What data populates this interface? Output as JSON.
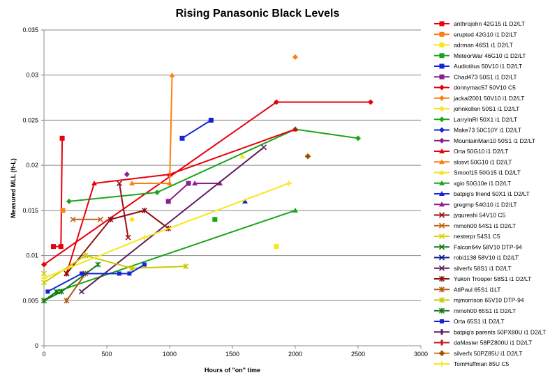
{
  "chart_data": {
    "type": "line",
    "title": "Rising Panasonic Black Levels",
    "xlabel": "Hours of \"on\" time",
    "ylabel": "Measured MLL (ft-L)",
    "xlim": [
      0,
      3000
    ],
    "ylim": [
      0,
      0.035
    ],
    "xticks": [
      "0",
      "500",
      "1000",
      "1500",
      "2000",
      "2500",
      "3000"
    ],
    "yticks": [
      "0",
      "0.005",
      "0.01",
      "0.015",
      "0.02",
      "0.025",
      "0.03",
      "0.035"
    ],
    "grid": "horizontal",
    "legend_position": "right",
    "series": [
      {
        "name": "anthrojohn 42G15 i1 D2/LT",
        "color": "#e8000b",
        "marker": "square",
        "points": [
          [
            75,
            0.011
          ],
          [
            135,
            0.011
          ],
          [
            145,
            0.023
          ]
        ]
      },
      {
        "name": "erupted 42G10 i1 D2/LT",
        "color": "#ff7f0e",
        "marker": "square",
        "points": [
          [
            150,
            0.015
          ]
        ]
      },
      {
        "name": "adrman 46S1 i1 D2/LT",
        "color": "#f5e71a",
        "marker": "square",
        "points": [
          [
            1850,
            0.011
          ]
        ]
      },
      {
        "name": "MeteorWar 46G10 i1 D2/LT",
        "color": "#19a519",
        "marker": "square",
        "points": [
          [
            1360,
            0.014
          ]
        ]
      },
      {
        "name": "Audiotitus 50V10 i1 D2/LT",
        "color": "#1525d6",
        "marker": "square",
        "points": [
          [
            1100,
            0.023
          ],
          [
            1330,
            0.025
          ]
        ]
      },
      {
        "name": "Chad473 50S1 i1 D2/LT",
        "color": "#8e1d8e",
        "marker": "square",
        "points": [
          [
            990,
            0.016
          ],
          [
            1150,
            0.018
          ]
        ]
      },
      {
        "name": "donnymac57 50V10 C5",
        "color": "#e8000b",
        "marker": "diamond",
        "points": [
          [
            0,
            0.009
          ],
          [
            1850,
            0.027
          ],
          [
            2600,
            0.027
          ]
        ]
      },
      {
        "name": "jackal2001 50V10 i1 D2/LT",
        "color": "#ff7f0e",
        "marker": "diamond",
        "points": [
          [
            2000,
            0.032
          ]
        ]
      },
      {
        "name": "johnkollen 50S1 i1 D2/LT",
        "color": "#f5e71a",
        "marker": "diamond",
        "points": [
          [
            700,
            0.014
          ]
        ]
      },
      {
        "name": "LarryInRI 50X1 i1 D2/LT",
        "color": "#19a519",
        "marker": "diamond",
        "points": [
          [
            200,
            0.016
          ],
          [
            900,
            0.017
          ],
          [
            2000,
            0.024
          ],
          [
            2500,
            0.023
          ]
        ]
      },
      {
        "name": "Make73 50C10Y i1 D2/LT",
        "color": "#1525d6",
        "marker": "diamond",
        "points": []
      },
      {
        "name": "MountainMan10 50S1 i1 D2/LT",
        "color": "#8e1d8e",
        "marker": "diamond",
        "points": [
          [
            660,
            0.019
          ]
        ]
      },
      {
        "name": "Orta 50G10 i1 D2/LT",
        "color": "#e8000b",
        "marker": "triangle",
        "points": [
          [
            180,
            0.008
          ],
          [
            400,
            0.018
          ],
          [
            1000,
            0.019
          ],
          [
            2000,
            0.024
          ]
        ]
      },
      {
        "name": "slosvt 50G10 i1 D2/LT",
        "color": "#ff7f0e",
        "marker": "triangle",
        "points": [
          [
            700,
            0.018
          ],
          [
            1000,
            0.018
          ],
          [
            1020,
            0.03
          ]
        ]
      },
      {
        "name": "Smoof15 50G15 i1 D2/LT",
        "color": "#f5e71a",
        "marker": "triangle",
        "points": [
          [
            1580,
            0.021
          ]
        ]
      },
      {
        "name": "xgio 50G10e i1 D2/LT",
        "color": "#19a519",
        "marker": "triangle",
        "points": [
          [
            100,
            0.006
          ],
          [
            2000,
            0.015
          ]
        ]
      },
      {
        "name": "batpig's friend 50X1 i1 D2/LT",
        "color": "#1525d6",
        "marker": "triangle",
        "points": [
          [
            1600,
            0.016
          ]
        ]
      },
      {
        "name": "gregmp 54G10 i1 D2/LT",
        "color": "#8e1d8e",
        "marker": "triangle",
        "points": [
          [
            1200,
            0.018
          ],
          [
            1400,
            0.018
          ]
        ]
      },
      {
        "name": "jyqureshi 54V10 C5",
        "color": "#9e1111",
        "marker": "x",
        "points": [
          [
            600,
            0.018
          ],
          [
            670,
            0.012
          ]
        ]
      },
      {
        "name": "mmoh00 54S1 i1 D2/LT",
        "color": "#c2641a",
        "marker": "x",
        "points": [
          [
            230,
            0.014
          ],
          [
            450,
            0.014
          ]
        ]
      },
      {
        "name": "nesterpr 54S1 C5",
        "color": "#d4d400",
        "marker": "x",
        "points": [
          [
            0,
            0.008
          ]
        ]
      },
      {
        "name": "Falcon64v 58V10 DTP-94",
        "color": "#127a12",
        "marker": "x",
        "points": [
          [
            0,
            0.005
          ],
          [
            100,
            0.006
          ]
        ]
      },
      {
        "name": "robi1138 58V10 i1 D2/LT",
        "color": "#101b8c",
        "marker": "x",
        "points": []
      },
      {
        "name": "silverfx 58S1 i1 D2/LT",
        "color": "#5e1a5e",
        "marker": "x",
        "points": [
          [
            300,
            0.006
          ],
          [
            1750,
            0.022
          ]
        ]
      },
      {
        "name": "Yukon Trooper 58S1 i1 D2/LT",
        "color": "#8e1010",
        "marker": "star",
        "points": [
          [
            180,
            0.008
          ],
          [
            530,
            0.014
          ],
          [
            800,
            0.015
          ],
          [
            990,
            0.013
          ]
        ]
      },
      {
        "name": "AtlPaul 65S1 i1LT",
        "color": "#b35a12",
        "marker": "star",
        "points": [
          [
            180,
            0.005
          ],
          [
            330,
            0.008
          ]
        ]
      },
      {
        "name": "mjmorrison 65V10 DTP-94",
        "color": "#caca00",
        "marker": "star",
        "points": [
          [
            0,
            0.007
          ],
          [
            330,
            0.01
          ],
          [
            700,
            0.0086
          ],
          [
            1130,
            0.0088
          ]
        ]
      },
      {
        "name": "mmoh00 65S1 i1 D2/LT",
        "color": "#127a12",
        "marker": "star",
        "points": [
          [
            0,
            0.005
          ],
          [
            140,
            0.006
          ],
          [
            430,
            0.009
          ]
        ]
      },
      {
        "name": "Orta 65S1 i1 D2/LT",
        "color": "#1525d6",
        "marker": "square-small",
        "points": [
          [
            30,
            0.006
          ],
          [
            300,
            0.008
          ],
          [
            600,
            0.008
          ],
          [
            680,
            0.008
          ],
          [
            800,
            0.009
          ]
        ]
      },
      {
        "name": "batpig's parents 50PX80U i1 D2/LT",
        "color": "#5e1a5e",
        "marker": "bar",
        "points": []
      },
      {
        "name": "daMaster 58PZ800U i1 D2/LT",
        "color": "#c21a1a",
        "marker": "bar",
        "points": []
      },
      {
        "name": "silverfx 50PZ85U i1 D2/LT",
        "color": "#d97a1a",
        "marker": "circle-plus",
        "points": [
          [
            2100,
            0.021
          ]
        ]
      },
      {
        "name": "TomHuffman 85U C5",
        "color": "#f5e71a",
        "marker": "plus",
        "points": [
          [
            0,
            0.0075
          ],
          [
            800,
            0.012
          ],
          [
            1950,
            0.018
          ]
        ]
      }
    ]
  }
}
